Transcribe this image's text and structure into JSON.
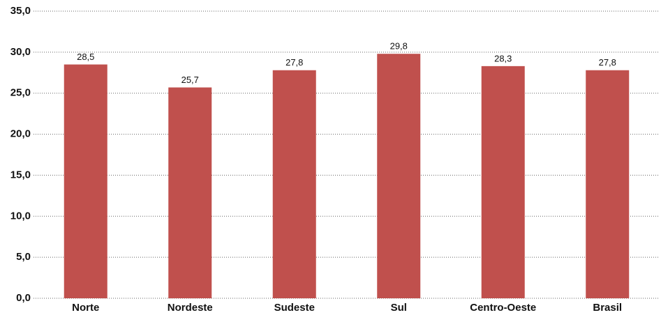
{
  "chart_data": {
    "type": "bar",
    "categories": [
      "Norte",
      "Nordeste",
      "Sudeste",
      "Sul",
      "Centro-Oeste",
      "Brasil"
    ],
    "values": [
      28.5,
      25.7,
      27.8,
      29.8,
      28.3,
      27.8
    ],
    "value_labels": [
      "28,5",
      "25,7",
      "27,8",
      "29,8",
      "28,3",
      "27,8"
    ],
    "color": "#c0504d",
    "ylim": [
      0,
      35
    ],
    "yticks": [
      {
        "value": 0,
        "label": "0,0"
      },
      {
        "value": 5,
        "label": "5,0"
      },
      {
        "value": 10,
        "label": "10,0"
      },
      {
        "value": 15,
        "label": "15,0"
      },
      {
        "value": 20,
        "label": "20,0"
      },
      {
        "value": 25,
        "label": "25,0"
      },
      {
        "value": 30,
        "label": "30,0"
      },
      {
        "value": 35,
        "label": "35,0"
      }
    ],
    "grid": true
  }
}
